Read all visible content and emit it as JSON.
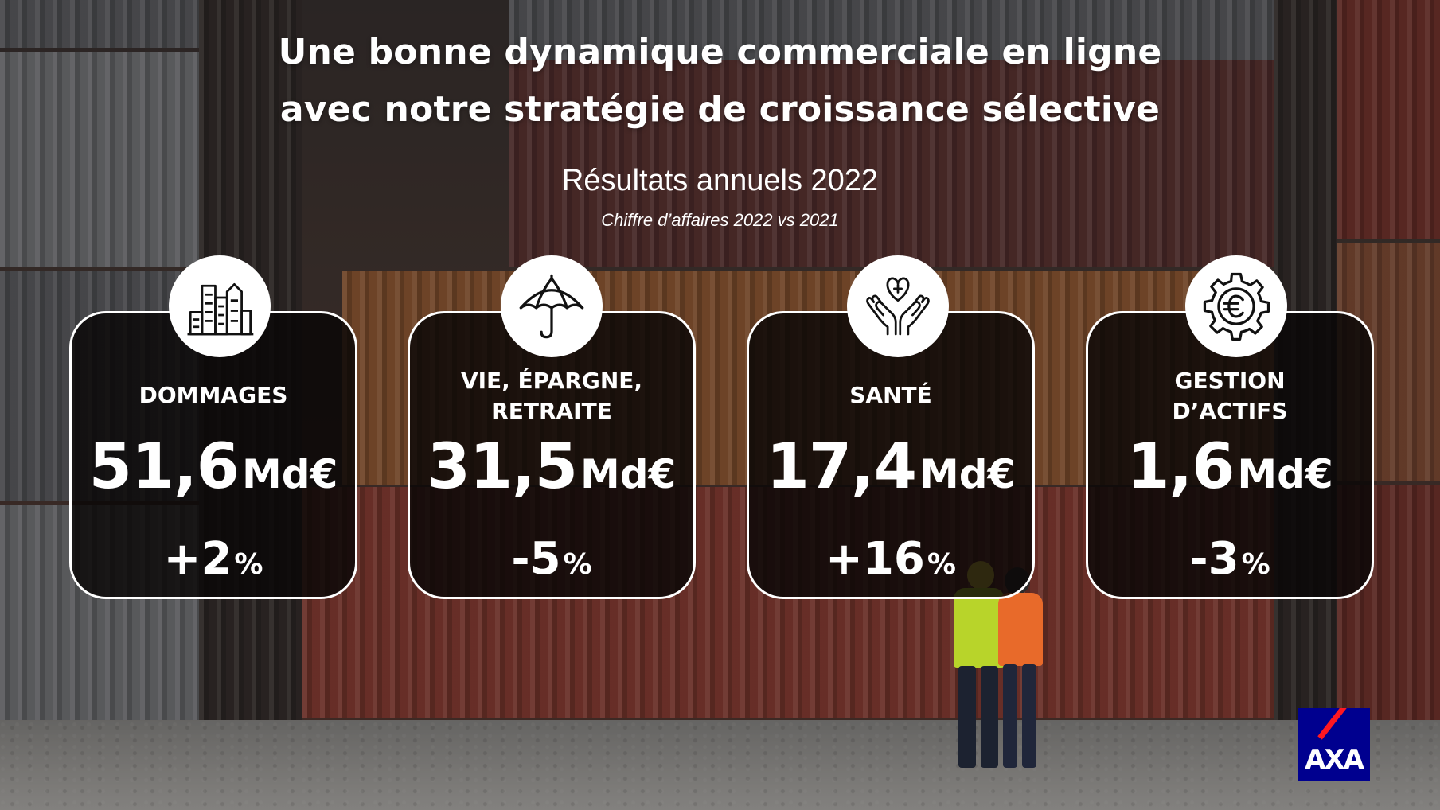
{
  "title": {
    "line1": "Une bonne dynamique commerciale en ligne",
    "line2": "avec notre stratégie de croissance sélective"
  },
  "subtitle": "Résultats annuels 2022",
  "note": "Chiffre d’affaires 2022 vs 2021",
  "cards": [
    {
      "label_lines": [
        "DOMMAGES",
        ""
      ],
      "value": "51,6",
      "unit": "Md€",
      "change": "+2",
      "pct": "%",
      "icon": "city-buildings-icon"
    },
    {
      "label_lines": [
        "VIE, ÉPARGNE,",
        "RETRAITE"
      ],
      "value": "31,5",
      "unit": "Md€",
      "change": "-5",
      "pct": "%",
      "icon": "umbrella-icon"
    },
    {
      "label_lines": [
        "SANTÉ",
        ""
      ],
      "value": "17,4",
      "unit": "Md€",
      "change": "+16",
      "pct": "%",
      "icon": "heart-in-hands-icon"
    },
    {
      "label_lines": [
        "GESTION",
        "D’ACTIFS"
      ],
      "value": "1,6",
      "unit": "Md€",
      "change": "-3",
      "pct": "%",
      "icon": "euro-gear-icon"
    }
  ],
  "logo": {
    "text": "AXA",
    "brand_color": "#00008f",
    "accent_color": "#ff1721"
  }
}
